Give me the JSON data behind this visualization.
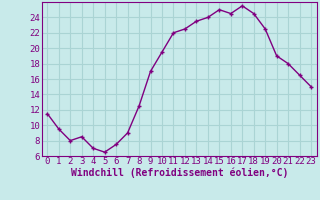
{
  "x": [
    0,
    1,
    2,
    3,
    4,
    5,
    6,
    7,
    8,
    9,
    10,
    11,
    12,
    13,
    14,
    15,
    16,
    17,
    18,
    19,
    20,
    21,
    22,
    23
  ],
  "y": [
    11.5,
    9.5,
    8.0,
    8.5,
    7.0,
    6.5,
    7.5,
    9.0,
    12.5,
    17.0,
    19.5,
    22.0,
    22.5,
    23.5,
    24.0,
    25.0,
    24.5,
    25.5,
    24.5,
    22.5,
    19.0,
    18.0,
    16.5,
    15.0
  ],
  "line_color": "#800080",
  "marker": "+",
  "bg_color": "#c8eaea",
  "grid_color": "#aad4d4",
  "xlabel": "Windchill (Refroidissement éolien,°C)",
  "xlabel_color": "#800080",
  "tick_color": "#800080",
  "ylim": [
    6,
    26
  ],
  "xlim_min": -0.5,
  "xlim_max": 23.5,
  "yticks": [
    6,
    8,
    10,
    12,
    14,
    16,
    18,
    20,
    22,
    24
  ],
  "xticks": [
    0,
    1,
    2,
    3,
    4,
    5,
    6,
    7,
    8,
    9,
    10,
    11,
    12,
    13,
    14,
    15,
    16,
    17,
    18,
    19,
    20,
    21,
    22,
    23
  ],
  "font_size": 6.5,
  "xlabel_fontsize": 7,
  "line_width": 1.0,
  "marker_size": 3.5,
  "marker_ew": 1.0
}
